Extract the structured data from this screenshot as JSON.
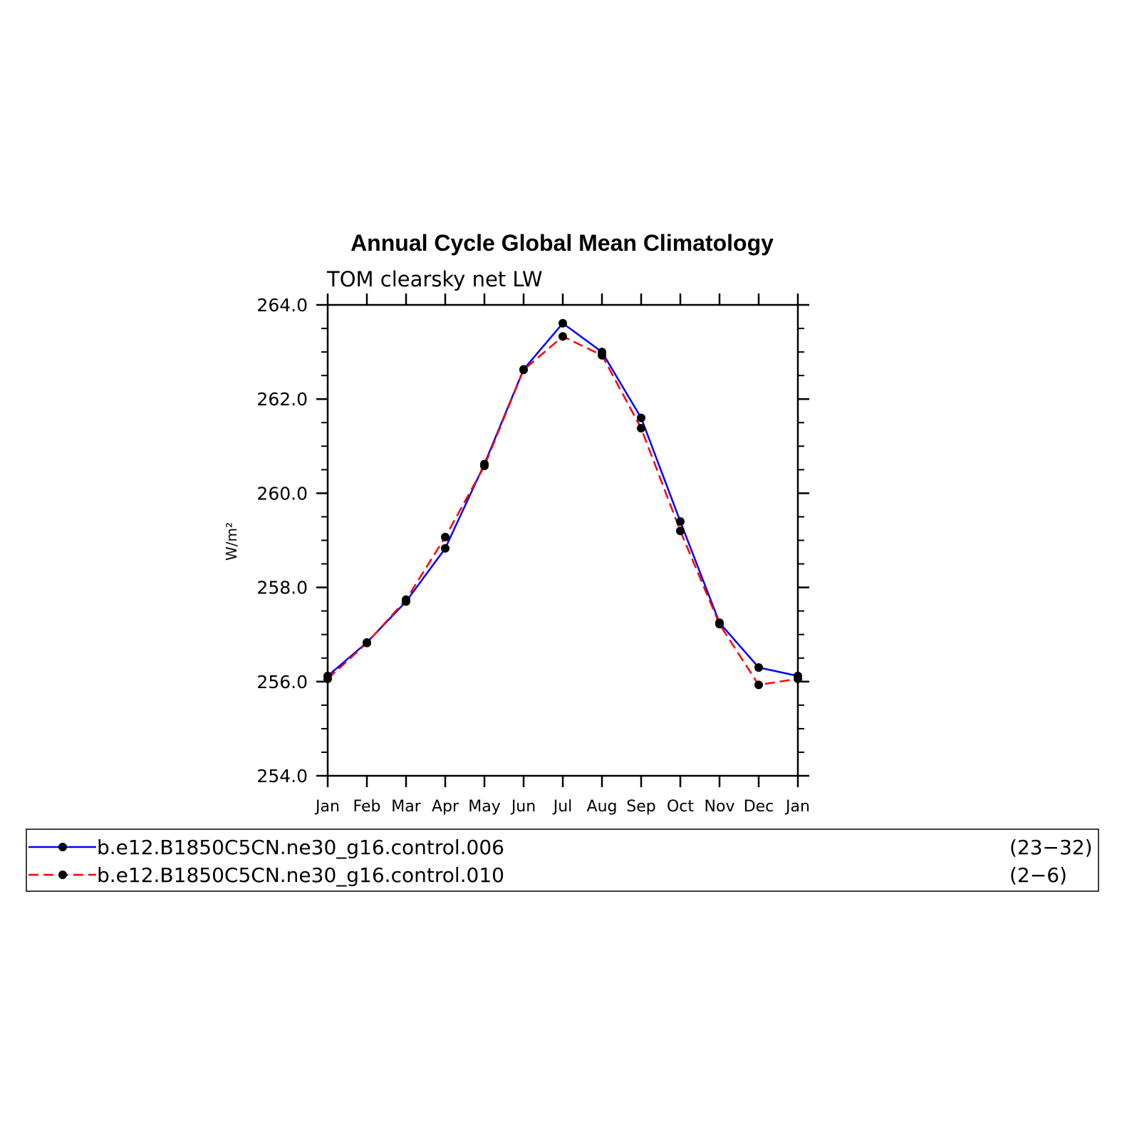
{
  "chart_data": {
    "type": "line",
    "title": "Annual Cycle Global Mean Climatology",
    "subtitle": "TOM clearsky net LW",
    "ylabel": "W/m²",
    "xlabel": "",
    "categories": [
      "Jan",
      "Feb",
      "Mar",
      "Apr",
      "May",
      "Jun",
      "Jul",
      "Aug",
      "Sep",
      "Oct",
      "Nov",
      "Dec",
      "Jan"
    ],
    "ylim": [
      254.0,
      264.0
    ],
    "yticks": [
      "254.0",
      "256.0",
      "258.0",
      "260.0",
      "262.0",
      "264.0"
    ],
    "grid": false,
    "legend_position": "bottom",
    "series": [
      {
        "name": "b.e12.B1850C5CN.ne30_g16.control.006",
        "years": "(23−32)",
        "color": "#0000ff",
        "dash": "solid",
        "values": [
          256.12,
          256.83,
          257.7,
          258.83,
          260.62,
          262.63,
          263.61,
          263.0,
          261.6,
          259.4,
          257.25,
          256.3,
          256.12
        ]
      },
      {
        "name": "b.e12.B1850C5CN.ne30_g16.control.010",
        "years": "(2−6)",
        "color": "#ff0000",
        "dash": "dashed",
        "values": [
          256.06,
          256.82,
          257.74,
          259.07,
          260.58,
          262.62,
          263.33,
          262.93,
          261.38,
          259.2,
          257.22,
          255.93,
          256.06
        ]
      }
    ]
  }
}
